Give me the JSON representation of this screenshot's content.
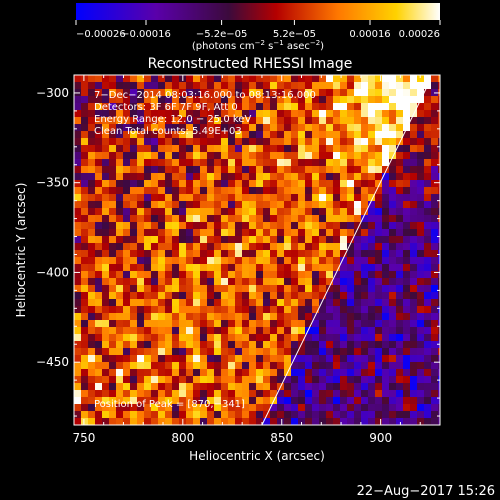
{
  "chart_data": {
    "type": "heatmap",
    "title": "Reconstructed RHESSI Image",
    "xlabel": "Heliocentric X (arcsec)",
    "ylabel": "Heliocentric Y (arcsec)",
    "xlim": [
      745,
      930
    ],
    "ylim": [
      -485,
      -290
    ],
    "x_ticks": [
      750,
      800,
      850,
      900
    ],
    "y_ticks": [
      -300,
      -350,
      -400,
      -450
    ],
    "x_tick_labels": [
      "750",
      "800",
      "850",
      "900"
    ],
    "y_tick_labels": [
      "−300",
      "−350",
      "−400",
      "−450"
    ],
    "colorbar": {
      "min": -0.00026,
      "max": 0.00026,
      "tick_labels": [
        "−0.00026",
        "−0.00016",
        "−5.2e−05",
        "5.2e−05",
        "0.00016",
        "0.00026"
      ],
      "units_prefix": "(photons cm",
      "units_exp1": "−2",
      "units_mid": " s",
      "units_exp2": "−1",
      "units_mid2": " asec",
      "units_exp3": "−2",
      "units_suffix": ")"
    },
    "annotations": {
      "line1": "7−Dec−2014 08:03:16.000 to 08:13:16.000",
      "line2": "Detectors: 3F 6F 7F 9F, Att 0",
      "line3": "Energy Range: 12.0 − 25.0 keV",
      "line4": "Clean    Total counts: 5.49E+03",
      "peak": "Position of Peak = [870,−341]"
    },
    "limb_line": [
      [
        840,
        -485
      ],
      [
        925,
        -293
      ]
    ],
    "grid": false,
    "colors": {
      "background": "#000000",
      "colorscale": [
        "#0000ff",
        "#5a00aa",
        "#3c0a3c",
        "#b40000",
        "#ff7800",
        "#ffd200",
        "#ffffff"
      ]
    }
  },
  "footer": {
    "timestamp": "22−Aug−2017 15:26"
  }
}
